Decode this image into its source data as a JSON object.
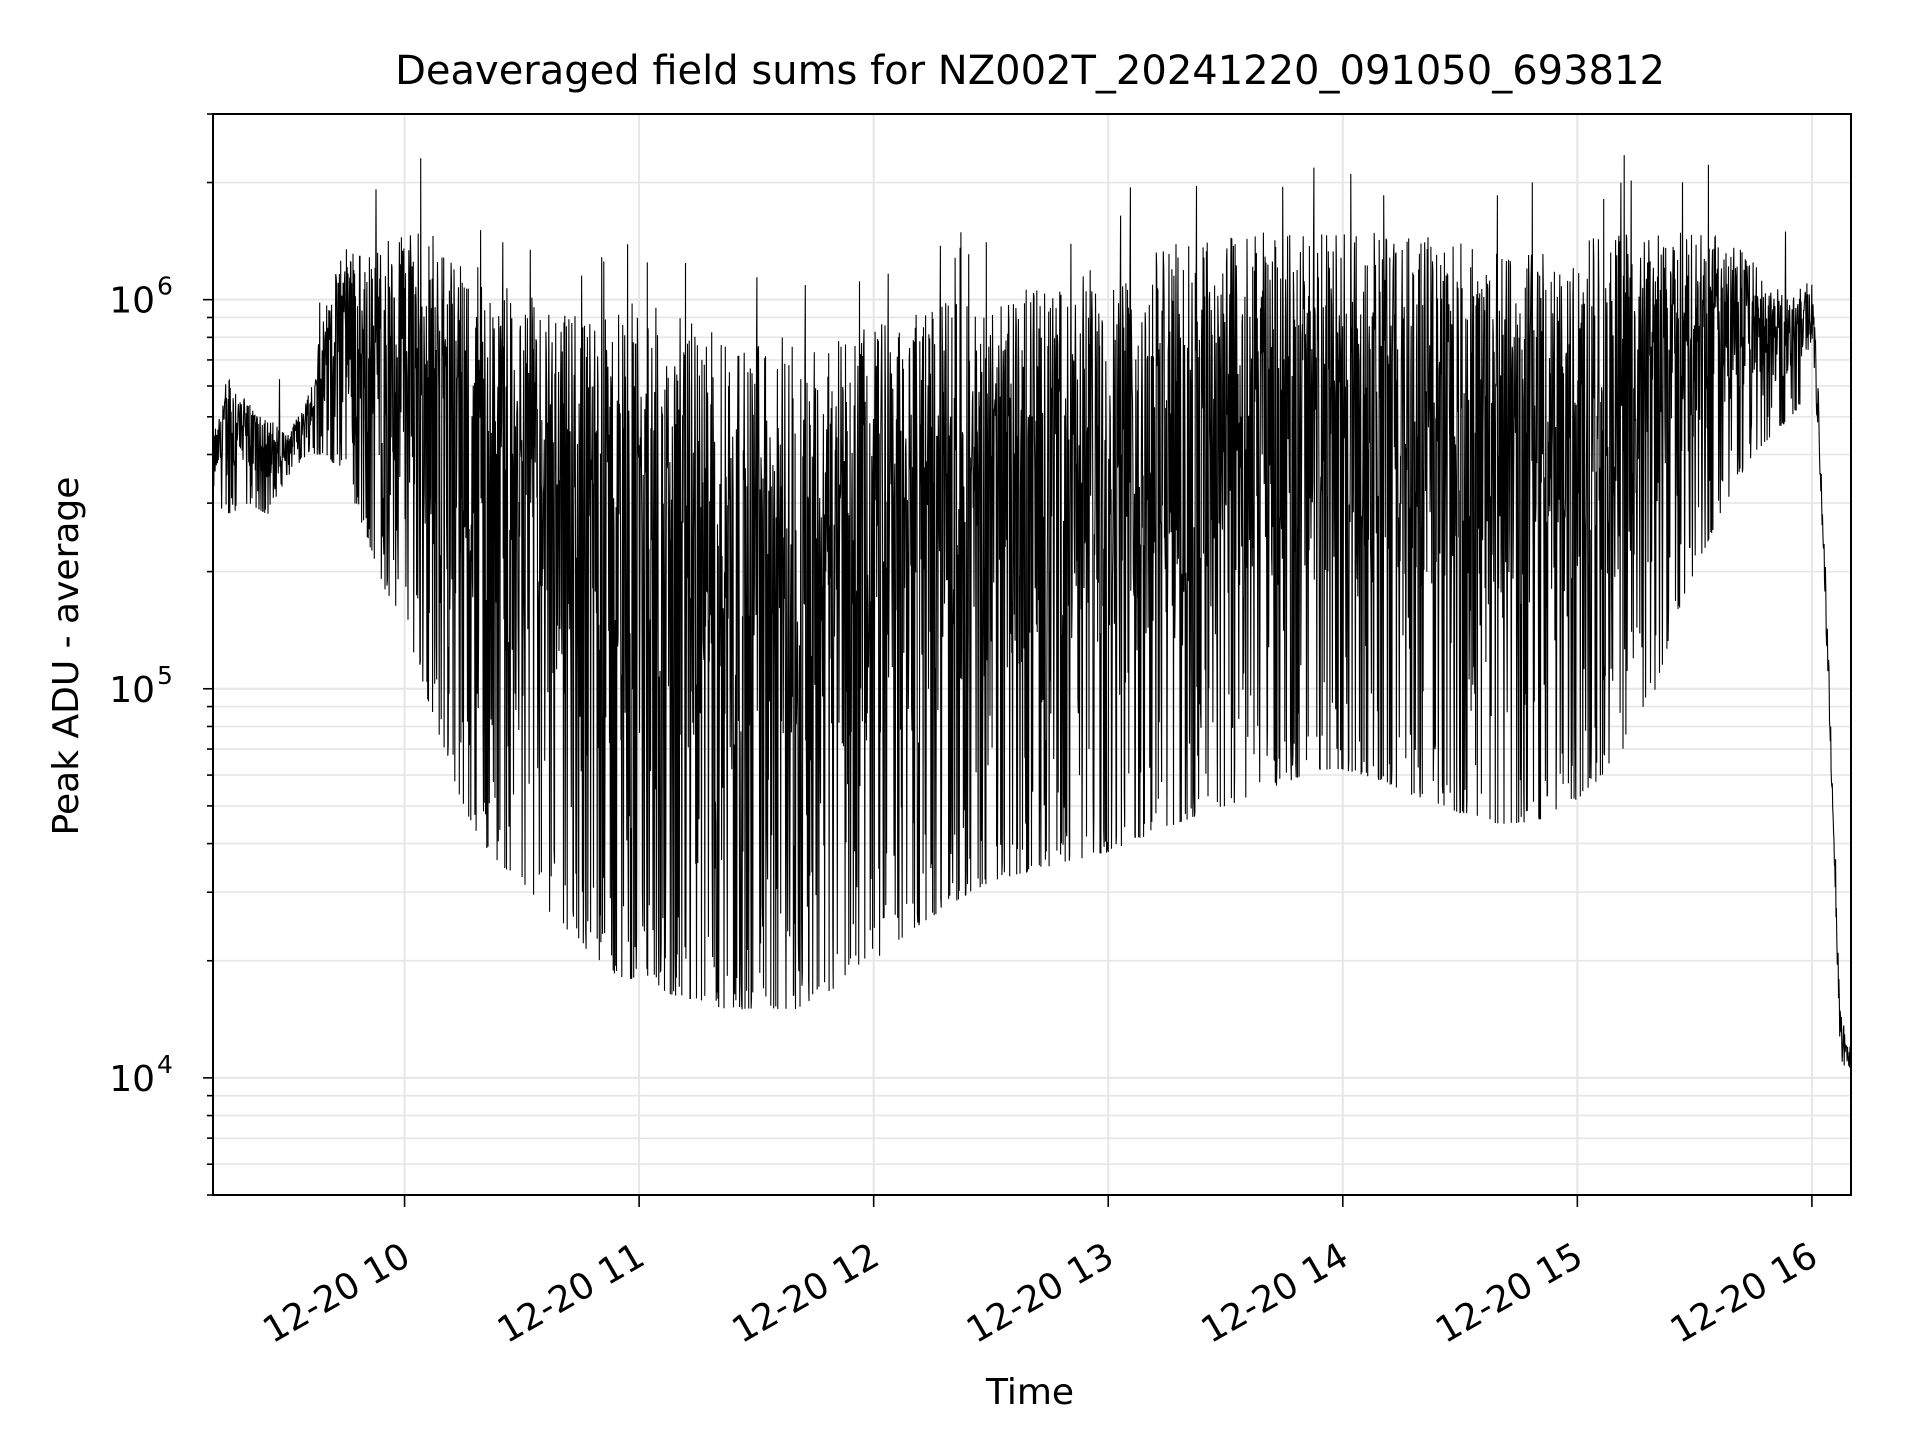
{
  "chart_data": {
    "type": "line",
    "title": "Deaveraged field sums for NZ002T_20241220_091050_693812",
    "xlabel": "Time",
    "ylabel": "Peak ADU - average",
    "yscale": "log",
    "xlim": [
      "2024-12-20 09:11",
      "2024-12-20 16:10"
    ],
    "ylim": [
      5000,
      3000000
    ],
    "grid": true,
    "x_ticks": [
      "2024-12-20 10:00",
      "2024-12-20 11:00",
      "2024-12-20 12:00",
      "2024-12-20 13:00",
      "2024-12-20 14:00",
      "2024-12-20 15:00",
      "2024-12-20 16:00"
    ],
    "x_tick_labels": [
      "12-20 10",
      "12-20 11",
      "12-20 12",
      "12-20 13",
      "12-20 14",
      "12-20 15",
      "12-20 16"
    ],
    "y_ticks": [
      10000,
      100000,
      1000000
    ],
    "y_tick_labels": [
      {
        "base": "10",
        "exp": "4"
      },
      {
        "base": "10",
        "exp": "5"
      },
      {
        "base": "10",
        "exp": "6"
      }
    ],
    "line_color": "#000000",
    "grid_color": "#e6e6e6",
    "series": [
      {
        "x": [
          "2024-12-20 09:11",
          "2024-12-20 09:15",
          "2024-12-20 09:20",
          "2024-12-20 09:25",
          "2024-12-20 09:30",
          "2024-12-20 09:35",
          "2024-12-20 09:40",
          "2024-12-20 09:45",
          "2024-12-20 09:50",
          "2024-12-20 09:55",
          "2024-12-20 10:00",
          "2024-12-20 10:05",
          "2024-12-20 10:10",
          "2024-12-20 10:15",
          "2024-12-20 10:20",
          "2024-12-20 10:25",
          "2024-12-20 10:30",
          "2024-12-20 10:35",
          "2024-12-20 10:40",
          "2024-12-20 10:45",
          "2024-12-20 10:50",
          "2024-12-20 10:55",
          "2024-12-20 11:00",
          "2024-12-20 11:05",
          "2024-12-20 11:10",
          "2024-12-20 11:15",
          "2024-12-20 11:20",
          "2024-12-20 11:25",
          "2024-12-20 11:30",
          "2024-12-20 11:35",
          "2024-12-20 11:40",
          "2024-12-20 11:45",
          "2024-12-20 11:50",
          "2024-12-20 11:55",
          "2024-12-20 12:00",
          "2024-12-20 12:05",
          "2024-12-20 12:10",
          "2024-12-20 12:15",
          "2024-12-20 12:20",
          "2024-12-20 12:25",
          "2024-12-20 12:30",
          "2024-12-20 12:35",
          "2024-12-20 12:40",
          "2024-12-20 12:45",
          "2024-12-20 12:50",
          "2024-12-20 12:55",
          "2024-12-20 13:00",
          "2024-12-20 13:05",
          "2024-12-20 13:10",
          "2024-12-20 13:15",
          "2024-12-20 13:20",
          "2024-12-20 13:25",
          "2024-12-20 13:30",
          "2024-12-20 13:35",
          "2024-12-20 13:40",
          "2024-12-20 13:45",
          "2024-12-20 13:50",
          "2024-12-20 13:55",
          "2024-12-20 14:00",
          "2024-12-20 14:05",
          "2024-12-20 14:10",
          "2024-12-20 14:15",
          "2024-12-20 14:20",
          "2024-12-20 14:25",
          "2024-12-20 14:30",
          "2024-12-20 14:35",
          "2024-12-20 14:40",
          "2024-12-20 14:45",
          "2024-12-20 14:50",
          "2024-12-20 14:55",
          "2024-12-20 15:00",
          "2024-12-20 15:05",
          "2024-12-20 15:10",
          "2024-12-20 15:15",
          "2024-12-20 15:20",
          "2024-12-20 15:25",
          "2024-12-20 15:30",
          "2024-12-20 15:35",
          "2024-12-20 15:40",
          "2024-12-20 15:45",
          "2024-12-20 15:50",
          "2024-12-20 15:55",
          "2024-12-20 16:00",
          "2024-12-20 16:02",
          "2024-12-20 16:04",
          "2024-12-20 16:06",
          "2024-12-20 16:07",
          "2024-12-20 16:08",
          "2024-12-20 16:09",
          "2024-12-20 16:10"
        ],
        "upper": [
          450000,
          650000,
          550000,
          500000,
          450000,
          550000,
          1000000,
          1400000,
          1300000,
          1400000,
          1600000,
          1500000,
          1500000,
          1300000,
          1200000,
          1100000,
          1050000,
          1000000,
          950000,
          900000,
          900000,
          950000,
          1000000,
          950000,
          900000,
          900000,
          850000,
          800000,
          800000,
          800000,
          800000,
          800000,
          850000,
          850000,
          900000,
          900000,
          950000,
          950000,
          1000000,
          1000000,
          1050000,
          1050000,
          1100000,
          1100000,
          1150000,
          1200000,
          1250000,
          1300000,
          1350000,
          1400000,
          1400000,
          1450000,
          1450000,
          1450000,
          1500000,
          1500000,
          1500000,
          1500000,
          1500000,
          1500000,
          1500000,
          1450000,
          1450000,
          1450000,
          1400000,
          1400000,
          1400000,
          1400000,
          1400000,
          1400000,
          1450000,
          1500000,
          1500000,
          1550000,
          1550000,
          1550000,
          1500000,
          1500000,
          1400000,
          1300000,
          1100000,
          1000000,
          1200000,
          500000,
          150000,
          40000,
          18000,
          14000,
          13000,
          12000
        ],
        "lower": [
          300000,
          280000,
          300000,
          280000,
          350000,
          400000,
          400000,
          350000,
          250000,
          180000,
          150000,
          100000,
          70000,
          50000,
          40000,
          35000,
          32000,
          28000,
          25000,
          22000,
          20000,
          18000,
          18000,
          17000,
          16000,
          16000,
          15000,
          15000,
          15000,
          15000,
          15000,
          16000,
          17000,
          18000,
          20000,
          22000,
          24000,
          26000,
          28000,
          30000,
          32000,
          33000,
          34000,
          35000,
          36000,
          37000,
          38000,
          40000,
          42000,
          44000,
          46000,
          48000,
          50000,
          52000,
          55000,
          57000,
          60000,
          62000,
          62000,
          60000,
          58000,
          55000,
          52000,
          50000,
          48000,
          46000,
          45000,
          45000,
          46000,
          48000,
          52000,
          58000,
          65000,
          80000,
          100000,
          150000,
          200000,
          260000,
          330000,
          400000,
          450000,
          500000,
          600000,
          300000,
          90000,
          25000,
          10000,
          9000,
          9000,
          9000
        ]
      }
    ]
  }
}
